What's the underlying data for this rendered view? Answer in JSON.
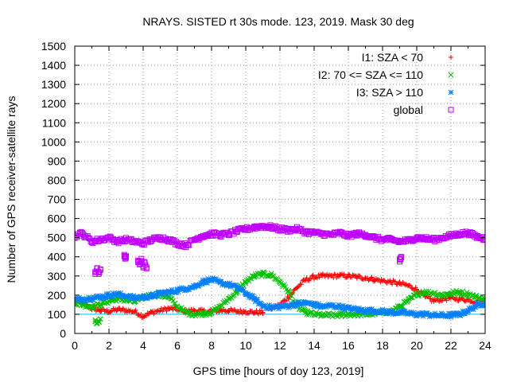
{
  "chart_data": {
    "type": "scatter",
    "title": "NRAYS. SISTED rt 30s mode. 123, 2019. Mask 30 deg",
    "xlabel": "GPS time [hours of doy 123, 2019]",
    "ylabel": "Number of GPS receiver-satellite rays",
    "xlim": [
      0,
      24
    ],
    "ylim": [
      0,
      1500
    ],
    "xticks": [
      "0",
      "2",
      "4",
      "6",
      "8",
      "10",
      "12",
      "14",
      "16",
      "18",
      "20",
      "22",
      "24"
    ],
    "yticks": [
      "0",
      "100",
      "200",
      "300",
      "400",
      "500",
      "600",
      "700",
      "800",
      "900",
      "1000",
      "1100",
      "1200",
      "1300",
      "1400",
      "1500"
    ],
    "grid": true,
    "legend_position": "top-right",
    "reference_line": {
      "y": 100,
      "color": "#00c0ff"
    },
    "series": [
      {
        "name": "I1: SZA < 70",
        "color": "#ff0000",
        "marker": "plus",
        "segments": [
          {
            "x": [
              0,
              0.5,
              1,
              1.5,
              2,
              2.5,
              3,
              3.5,
              4,
              4.5,
              5,
              5.5,
              6,
              6.5,
              7,
              7.5,
              8,
              8.5,
              9,
              9.5,
              10,
              10.5,
              11
            ],
            "y": [
              170,
              160,
              130,
              120,
              115,
              125,
              120,
              115,
              90,
              110,
              120,
              130,
              125,
              115,
              120,
              115,
              115,
              120,
              120,
              115,
              115,
              110,
              110
            ]
          },
          {
            "x": [
              11.5,
              12,
              12.5,
              13,
              13.5,
              14,
              14.5,
              15,
              15.5,
              16,
              16.5,
              17,
              17.5,
              18,
              18.5,
              19,
              19.5,
              20,
              20.5,
              21,
              21.5,
              22,
              22.5,
              23,
              23.5,
              24
            ],
            "y": [
              130,
              150,
              190,
              240,
              280,
              295,
              300,
              300,
              302,
              300,
              295,
              290,
              282,
              275,
              268,
              260,
              250,
              230,
              190,
              170,
              180,
              185,
              180,
              175,
              165,
              165
            ]
          }
        ]
      },
      {
        "name": "I2: 70 <= SZA <= 110",
        "color": "#00c000",
        "marker": "cross",
        "segments": [
          {
            "x": [
              0,
              0.5,
              1,
              1.5,
              2,
              2.5,
              3,
              3.5,
              4,
              4.5,
              5,
              5.5,
              6,
              6.5,
              7,
              7.5,
              8,
              8.5,
              9,
              9.5,
              10,
              10.5,
              11,
              11.5,
              12,
              12.5,
              13,
              13.5,
              14,
              14.5,
              15,
              15.5,
              16,
              16.5,
              17,
              17.5,
              18,
              18.5,
              19,
              19.5,
              20,
              20.5,
              21,
              21.5,
              22,
              22.5,
              23,
              23.5,
              24
            ],
            "y": [
              160,
              150,
              140,
              150,
              170,
              180,
              175,
              165,
              190,
              200,
              200,
              190,
              140,
              110,
              100,
              105,
              110,
              140,
              180,
              220,
              270,
              300,
              310,
              305,
              270,
              220,
              140,
              110,
              100,
              95,
              95,
              95,
              100,
              100,
              100,
              105,
              110,
              115,
              140,
              170,
              205,
              215,
              210,
              200,
              210,
              215,
              205,
              190,
              175
            ]
          },
          {
            "x": [
              1.2,
              1.3,
              1.4,
              1.5
            ],
            "y": [
              70,
              55,
              60,
              75
            ]
          }
        ]
      },
      {
        "name": "I3: SZA > 110",
        "color": "#0080ff",
        "marker": "star",
        "segments": [
          {
            "x": [
              0,
              0.5,
              1,
              1.5,
              2,
              2.5,
              3,
              3.5,
              4,
              4.5,
              5,
              5.5,
              6,
              6.5,
              7,
              7.5,
              8,
              8.5,
              9,
              9.5,
              10,
              10.5,
              11,
              11.5,
              12,
              12.5,
              13,
              13.5,
              14,
              14.5,
              15,
              15.5,
              16,
              16.5,
              17,
              17.5,
              18,
              18.5,
              19,
              19.5,
              20,
              20.5,
              21,
              21.5,
              22,
              22.5,
              23,
              23.5,
              24
            ],
            "y": [
              175,
              180,
              185,
              190,
              200,
              205,
              195,
              185,
              190,
              195,
              210,
              215,
              225,
              235,
              245,
              270,
              280,
              265,
              255,
              240,
              210,
              180,
              145,
              135,
              140,
              145,
              155,
              160,
              150,
              140,
              145,
              140,
              130,
              125,
              120,
              118,
              115,
              110,
              110,
              105,
              100,
              100,
              95,
              95,
              95,
              100,
              120,
              145,
              160
            ]
          }
        ]
      },
      {
        "name": "global",
        "color": "#c000ff",
        "marker": "square",
        "segments": [
          {
            "x": [
              0,
              0.3,
              0.6,
              1,
              1.5,
              2,
              2.5,
              3,
              3.5,
              4,
              4.5,
              5,
              5.5,
              6,
              6.5,
              7,
              7.5,
              8,
              8.5,
              9,
              9.5,
              10,
              10.5,
              11,
              11.5,
              12,
              12.5,
              13,
              13.5,
              14,
              14.5,
              15,
              15.5,
              16,
              16.5,
              17,
              17.5,
              18,
              18.5,
              19,
              19.5,
              20,
              20.5,
              21,
              21.5,
              22,
              22.5,
              23,
              23.5,
              24
            ],
            "y": [
              500,
              525,
              510,
              480,
              490,
              500,
              480,
              490,
              480,
              470,
              490,
              500,
              490,
              470,
              460,
              490,
              510,
              520,
              515,
              520,
              535,
              545,
              555,
              560,
              555,
              545,
              540,
              545,
              530,
              525,
              520,
              515,
              525,
              510,
              520,
              515,
              500,
              490,
              490,
              480,
              485,
              500,
              495,
              490,
              500,
              510,
              520,
              525,
              505,
              495
            ]
          },
          {
            "x": [
              1.2,
              1.3,
              1.4,
              1.5
            ],
            "y": [
              320,
              340,
              310,
              335
            ]
          },
          {
            "x": [
              3.7,
              3.8,
              3.9,
              4.0,
              4.1,
              4.2
            ],
            "y": [
              380,
              360,
              390,
              350,
              370,
              345
            ]
          },
          {
            "x": [
              2.9,
              3.0
            ],
            "y": [
              405,
              395
            ]
          },
          {
            "x": [
              19.0,
              19.1
            ],
            "y": [
              385,
              400
            ]
          }
        ]
      }
    ]
  }
}
